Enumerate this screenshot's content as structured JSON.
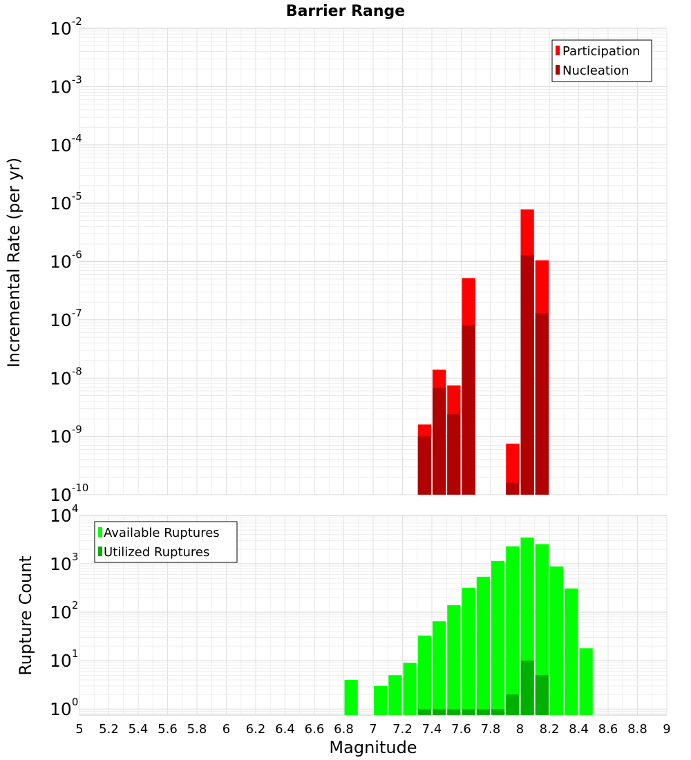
{
  "chart_data": [
    {
      "type": "bar",
      "title": "Barrier Range",
      "xlabel": "",
      "ylabel": "Incremental Rate (per yr)",
      "y_scale": "log",
      "xlim": [
        5,
        9
      ],
      "ylim": [
        1e-10,
        0.01
      ],
      "y_ticks": [
        {
          "base": "10",
          "exp": "-10",
          "value": 1e-10
        },
        {
          "base": "10",
          "exp": "-9",
          "value": 1e-09
        },
        {
          "base": "10",
          "exp": "-8",
          "value": 1e-08
        },
        {
          "base": "10",
          "exp": "-7",
          "value": 1e-07
        },
        {
          "base": "10",
          "exp": "-6",
          "value": 1e-06
        },
        {
          "base": "10",
          "exp": "-5",
          "value": 1e-05
        },
        {
          "base": "10",
          "exp": "-4",
          "value": 0.0001
        },
        {
          "base": "10",
          "exp": "-3",
          "value": 0.001
        },
        {
          "base": "10",
          "exp": "-2",
          "value": 0.01
        }
      ],
      "legend_position": "top-right",
      "grid": true,
      "bin_width": 0.1,
      "series": [
        {
          "name": "Participation",
          "color": "#ff0000",
          "x": [
            7.35,
            7.45,
            7.55,
            7.65,
            7.95,
            8.05,
            8.15
          ],
          "values": [
            1.6e-09,
            1.4e-08,
            7.5e-09,
            5.2e-07,
            7.5e-10,
            7.8e-06,
            1.05e-06
          ]
        },
        {
          "name": "Nucleation",
          "color": "#b00000",
          "x": [
            7.35,
            7.45,
            7.55,
            7.65,
            7.95,
            8.05,
            8.15
          ],
          "values": [
            1e-09,
            6.8e-09,
            2.4e-09,
            8e-08,
            1.6e-10,
            1.3e-06,
            1.3e-07
          ]
        }
      ]
    },
    {
      "type": "bar",
      "title": "",
      "xlabel": "Magnitude",
      "ylabel": "Rupture Count",
      "y_scale": "log",
      "xlim": [
        5,
        9
      ],
      "ylim": [
        0.75,
        10000
      ],
      "x_ticks": [
        "5",
        "5.2",
        "5.4",
        "5.6",
        "5.8",
        "6",
        "6.2",
        "6.4",
        "6.6",
        "6.8",
        "7",
        "7.2",
        "7.4",
        "7.6",
        "7.8",
        "8",
        "8.2",
        "8.4",
        "8.6",
        "8.8",
        "9"
      ],
      "y_ticks": [
        {
          "base": "10",
          "exp": "0",
          "value": 1
        },
        {
          "base": "10",
          "exp": "1",
          "value": 10
        },
        {
          "base": "10",
          "exp": "2",
          "value": 100
        },
        {
          "base": "10",
          "exp": "3",
          "value": 1000
        },
        {
          "base": "10",
          "exp": "4",
          "value": 10000
        }
      ],
      "legend_position": "top-left",
      "grid": true,
      "bin_width": 0.1,
      "series": [
        {
          "name": "Available Ruptures",
          "color": "#00ff00",
          "x": [
            6.85,
            7.05,
            7.15,
            7.25,
            7.35,
            7.45,
            7.55,
            7.65,
            7.75,
            7.85,
            7.95,
            8.05,
            8.15,
            8.25,
            8.35,
            8.45
          ],
          "values": [
            4,
            3,
            5,
            9,
            33,
            65,
            140,
            320,
            540,
            1150,
            2300,
            3500,
            2550,
            880,
            310,
            18
          ]
        },
        {
          "name": "Utilized Ruptures",
          "color": "#00b000",
          "x": [
            7.35,
            7.45,
            7.55,
            7.65,
            7.75,
            7.85,
            7.95,
            8.05,
            8.15
          ],
          "values": [
            1,
            1,
            1,
            1,
            1,
            1,
            2,
            10,
            5
          ]
        }
      ]
    }
  ]
}
